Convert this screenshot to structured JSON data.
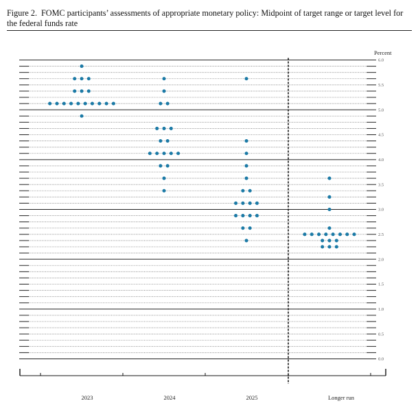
{
  "caption": {
    "figure_label": "Figure 2.",
    "text": "FOMC participants’ assessments of appropriate monetary policy: Midpoint of target range or target level for the federal funds rate"
  },
  "colors": {
    "dot": "#1b7aa6",
    "rule": "#222222",
    "grid": "#777777"
  },
  "chart_data": {
    "type": "scatter",
    "subtype": "dot-plot",
    "title": "FOMC participants’ assessments of appropriate monetary policy: Midpoint of target range or target level for the federal funds rate",
    "ylabel": "Percent",
    "ylim": [
      0,
      6.0
    ],
    "y_ticks": [
      "0.0",
      "0.5",
      "1.0",
      "1.5",
      "2.0",
      "2.5",
      "3.0",
      "3.5",
      "4.0",
      "4.5",
      "5.0",
      "5.5",
      "6.0"
    ],
    "y_minor_step": 0.125,
    "categories": [
      "2023",
      "2024",
      "2025",
      "Longer run"
    ],
    "dots": [
      {
        "category": "2023",
        "rates": [
          {
            "rate": 5.875,
            "count": 1
          },
          {
            "rate": 5.625,
            "count": 3
          },
          {
            "rate": 5.375,
            "count": 3
          },
          {
            "rate": 5.125,
            "count": 10
          },
          {
            "rate": 4.875,
            "count": 1
          }
        ]
      },
      {
        "category": "2024",
        "rates": [
          {
            "rate": 5.625,
            "count": 1
          },
          {
            "rate": 5.375,
            "count": 1
          },
          {
            "rate": 5.125,
            "count": 2
          },
          {
            "rate": 4.625,
            "count": 3
          },
          {
            "rate": 4.375,
            "count": 2
          },
          {
            "rate": 4.125,
            "count": 5
          },
          {
            "rate": 3.875,
            "count": 2
          },
          {
            "rate": 3.625,
            "count": 1
          },
          {
            "rate": 3.375,
            "count": 1
          }
        ]
      },
      {
        "category": "2025",
        "rates": [
          {
            "rate": 5.625,
            "count": 1
          },
          {
            "rate": 4.375,
            "count": 1
          },
          {
            "rate": 4.125,
            "count": 1
          },
          {
            "rate": 3.875,
            "count": 1
          },
          {
            "rate": 3.625,
            "count": 1
          },
          {
            "rate": 3.375,
            "count": 2
          },
          {
            "rate": 3.125,
            "count": 4
          },
          {
            "rate": 2.875,
            "count": 4
          },
          {
            "rate": 2.625,
            "count": 2
          },
          {
            "rate": 2.375,
            "count": 1
          }
        ]
      },
      {
        "category": "Longer run",
        "rates": [
          {
            "rate": 3.625,
            "count": 1
          },
          {
            "rate": 3.25,
            "count": 1
          },
          {
            "rate": 3.0,
            "count": 1
          },
          {
            "rate": 2.625,
            "count": 1
          },
          {
            "rate": 2.5,
            "count": 8
          },
          {
            "rate": 2.375,
            "count": 3
          },
          {
            "rate": 2.25,
            "count": 3
          }
        ]
      }
    ]
  }
}
